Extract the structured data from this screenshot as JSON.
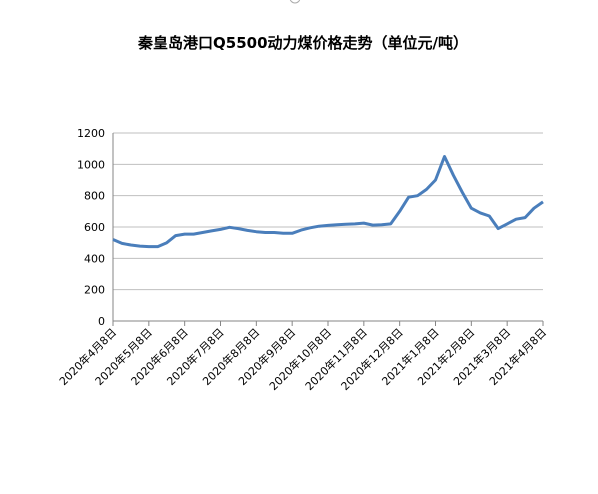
{
  "chart_data": {
    "type": "line",
    "title": "秦皇岛港口Q5500动力煤价格走势（单位元/吨）",
    "categories": [
      "2020年4月8日",
      null,
      null,
      null,
      "2020年5月8日",
      null,
      null,
      null,
      "2020年6月8日",
      null,
      null,
      null,
      "2020年7月8日",
      null,
      null,
      null,
      "2020年8月8日",
      null,
      null,
      null,
      "2020年9月8日",
      null,
      null,
      null,
      "2020年10月8日",
      null,
      null,
      null,
      "2020年11月8日",
      null,
      null,
      null,
      "2020年12月8日",
      null,
      null,
      null,
      "2021年1月8日",
      null,
      null,
      null,
      "2021年2月8日",
      null,
      null,
      null,
      "2021年3月8日",
      null,
      null,
      null,
      "2021年4月8日"
    ],
    "series": [
      {
        "name": "Q5500",
        "color": "#4a7ebb",
        "values": [
          520,
          495,
          485,
          478,
          475,
          475,
          500,
          545,
          555,
          555,
          565,
          575,
          585,
          598,
          590,
          578,
          570,
          565,
          565,
          560,
          560,
          580,
          595,
          605,
          610,
          615,
          618,
          620,
          625,
          612,
          615,
          620,
          700,
          790,
          800,
          840,
          900,
          1050,
          930,
          820,
          720,
          690,
          670,
          590,
          620,
          650,
          660,
          720,
          760
        ]
      }
    ],
    "ylim": [
      0,
      1200
    ],
    "yticks": [
      0,
      200,
      400,
      600,
      800,
      1000,
      1200
    ],
    "grid": true
  }
}
